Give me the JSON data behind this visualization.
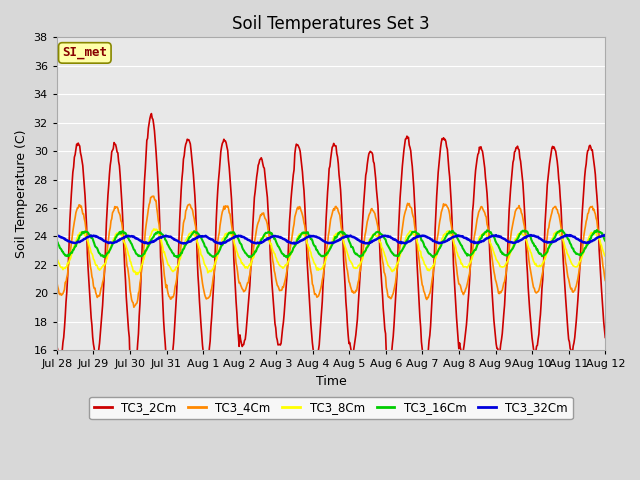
{
  "title": "Soil Temperatures Set 3",
  "xlabel": "Time",
  "ylabel": "Soil Temperature (C)",
  "ylim": [
    16,
    38
  ],
  "yticks": [
    16,
    18,
    20,
    22,
    24,
    26,
    28,
    30,
    32,
    34,
    36,
    38
  ],
  "series": [
    "TC3_2Cm",
    "TC3_4Cm",
    "TC3_8Cm",
    "TC3_16Cm",
    "TC3_32Cm"
  ],
  "colors": [
    "#CC0000",
    "#FF8800",
    "#FFFF00",
    "#00CC00",
    "#0000DD"
  ],
  "linewidths": [
    1.2,
    1.2,
    1.2,
    1.5,
    1.8
  ],
  "xtick_labels": [
    "Jul 28",
    "Jul 29",
    "Jul 30",
    "Jul 31",
    "Aug 1",
    "Aug 2",
    "Aug 3",
    "Aug 4",
    "Aug 5",
    "Aug 6",
    "Aug 7",
    "Aug 8",
    "Aug 9",
    "Aug 10",
    "Aug 11",
    "Aug 12"
  ],
  "annotation_text": "SI_met",
  "annotation_bg": "#FFFFAA",
  "annotation_border": "#888800",
  "plot_bg": "#E8E8E8",
  "fig_bg": "#D8D8D8",
  "title_fontsize": 12,
  "axis_fontsize": 9,
  "tick_fontsize": 8,
  "legend_fontsize": 8.5
}
